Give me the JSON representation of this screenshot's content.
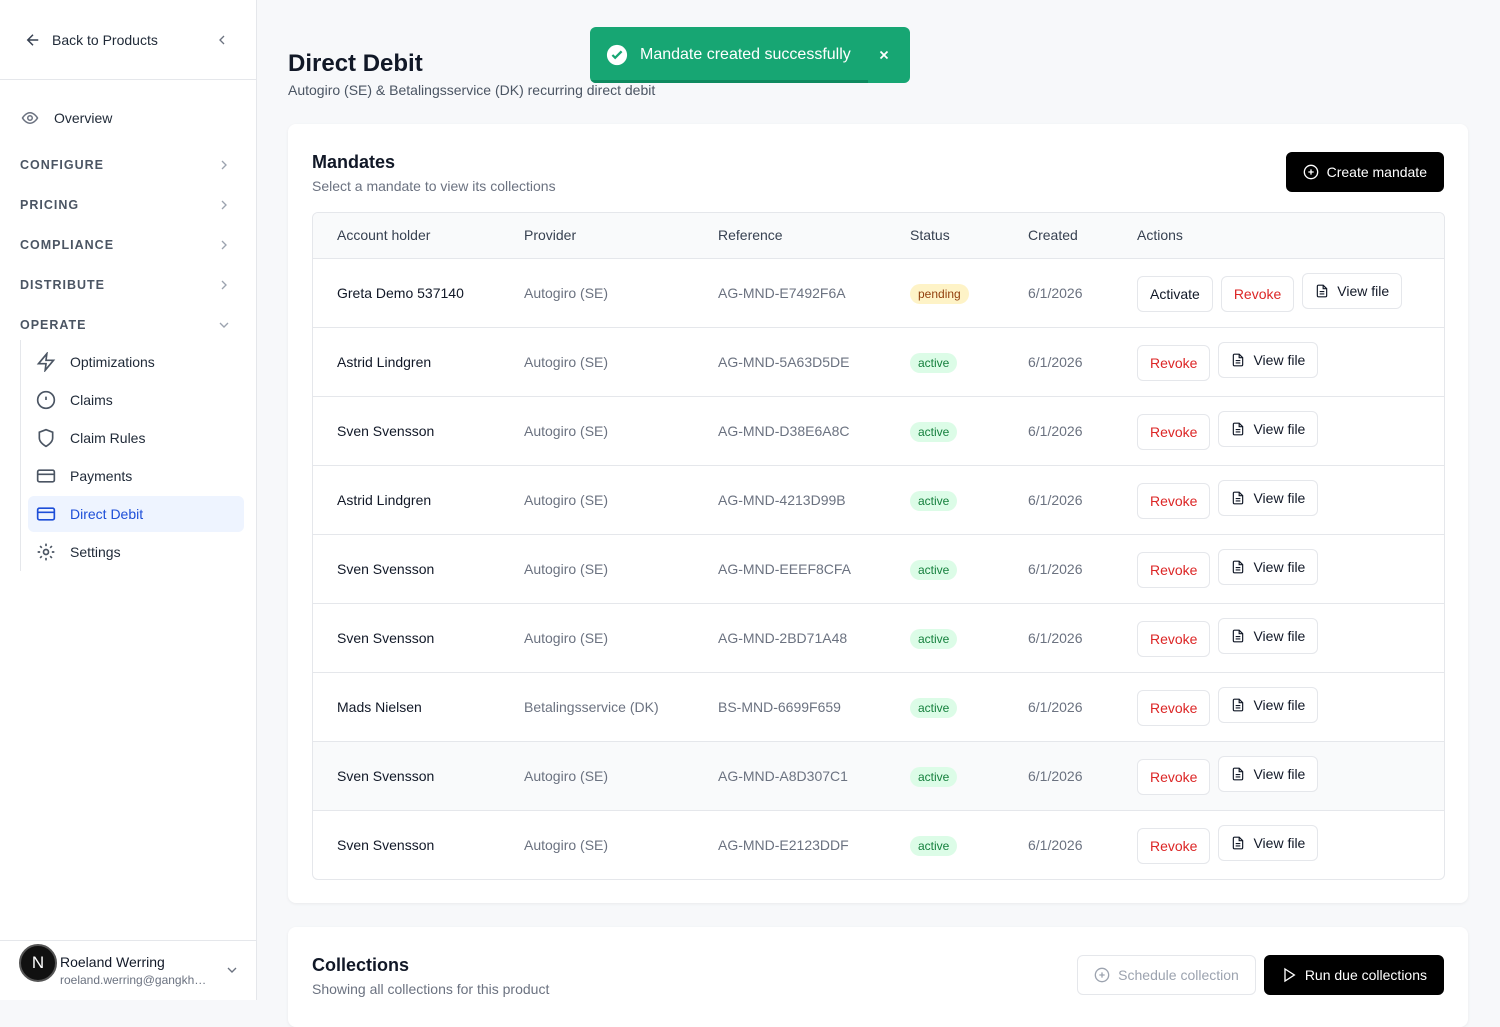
{
  "sidebar": {
    "back": "Back to Products",
    "overview": "Overview",
    "sections": [
      "CONFIGURE",
      "PRICING",
      "COMPLIANCE",
      "DISTRIBUTE",
      "OPERATE"
    ],
    "operate_items": [
      "Optimizations",
      "Claims",
      "Claim Rules",
      "Payments",
      "Direct Debit",
      "Settings"
    ],
    "user": {
      "avatar": "N",
      "name": "Roeland Werring",
      "email": "roeland.werring@gangkh…"
    }
  },
  "toast": {
    "message": "Mandate created successfully"
  },
  "header": {
    "title": "Direct Debit",
    "subtitle": "Autogiro (SE) & Betalingsservice (DK) recurring direct debit"
  },
  "mandates": {
    "title": "Mandates",
    "subtitle": "Select a mandate to view its collections",
    "button": "Create mandate",
    "columns": [
      "Account holder",
      "Provider",
      "Reference",
      "Status",
      "Created",
      "Actions"
    ],
    "rows": [
      [
        "Greta Demo 537140",
        "Autogiro (SE)",
        "AG-MND-E7492F6A",
        "pending",
        "6/1/2026",
        [
          "Activate",
          "Revoke",
          "View file"
        ]
      ],
      [
        "Astrid Lindgren",
        "Autogiro (SE)",
        "AG-MND-5A63D5DE",
        "active",
        "6/1/2026",
        [
          "Revoke",
          "View file"
        ]
      ],
      [
        "Sven Svensson",
        "Autogiro (SE)",
        "AG-MND-D38E6A8C",
        "active",
        "6/1/2026",
        [
          "Revoke",
          "View file"
        ]
      ],
      [
        "Astrid Lindgren",
        "Autogiro (SE)",
        "AG-MND-4213D99B",
        "active",
        "6/1/2026",
        [
          "Revoke",
          "View file"
        ]
      ],
      [
        "Sven Svensson",
        "Autogiro (SE)",
        "AG-MND-EEEF8CFA",
        "active",
        "6/1/2026",
        [
          "Revoke",
          "View file"
        ]
      ],
      [
        "Sven Svensson",
        "Autogiro (SE)",
        "AG-MND-2BD71A48",
        "active",
        "6/1/2026",
        [
          "Revoke",
          "View file"
        ]
      ],
      [
        "Mads Nielsen",
        "Betalingsservice (DK)",
        "BS-MND-6699F659",
        "active",
        "6/1/2026",
        [
          "Revoke",
          "View file"
        ]
      ],
      [
        "Sven Svensson",
        "Autogiro (SE)",
        "AG-MND-A8D307C1",
        "active",
        "6/1/2026",
        [
          "Revoke",
          "View file"
        ]
      ],
      [
        "Sven Svensson",
        "Autogiro (SE)",
        "AG-MND-E2123DDF",
        "active",
        "6/1/2026",
        [
          "Revoke",
          "View file"
        ]
      ]
    ]
  },
  "collections": {
    "title": "Collections",
    "subtitle": "Showing all collections for this product",
    "buttons": [
      "Schedule collection",
      "Run due collections"
    ]
  }
}
